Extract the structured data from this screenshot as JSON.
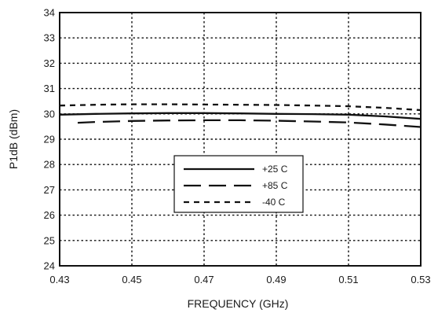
{
  "chart_data": {
    "type": "line",
    "title": "",
    "xlabel": "FREQUENCY (GHz)",
    "ylabel": "P1dB (dBm)",
    "xlim": [
      0.43,
      0.53
    ],
    "ylim": [
      24,
      34
    ],
    "x_ticks": [
      "0.43",
      "0.45",
      "0.47",
      "0.49",
      "0.51",
      "0.53"
    ],
    "y_ticks": [
      "24",
      "25",
      "26",
      "27",
      "28",
      "29",
      "30",
      "31",
      "32",
      "33",
      "34"
    ],
    "grid": true,
    "legend_position": "center",
    "series": [
      {
        "name": "+25 C",
        "style": "solid",
        "color": "#111111",
        "x": [
          0.43,
          0.44,
          0.45,
          0.46,
          0.47,
          0.48,
          0.49,
          0.5,
          0.51,
          0.52,
          0.53
        ],
        "y": [
          29.97,
          30.0,
          30.02,
          30.03,
          30.03,
          30.02,
          30.0,
          29.99,
          29.97,
          29.9,
          29.8
        ]
      },
      {
        "name": "+85 C",
        "style": "long-dash",
        "color": "#111111",
        "x": [
          0.435,
          0.44,
          0.45,
          0.46,
          0.47,
          0.48,
          0.49,
          0.5,
          0.51,
          0.52,
          0.53
        ],
        "y": [
          29.65,
          29.68,
          29.72,
          29.74,
          29.75,
          29.75,
          29.73,
          29.7,
          29.66,
          29.58,
          29.48
        ]
      },
      {
        "name": "-40 C",
        "style": "short-dash",
        "color": "#111111",
        "x": [
          0.43,
          0.44,
          0.45,
          0.46,
          0.47,
          0.48,
          0.49,
          0.5,
          0.51,
          0.52,
          0.53
        ],
        "y": [
          30.33,
          30.36,
          30.38,
          30.38,
          30.37,
          30.36,
          30.35,
          30.33,
          30.3,
          30.24,
          30.15
        ]
      }
    ]
  }
}
